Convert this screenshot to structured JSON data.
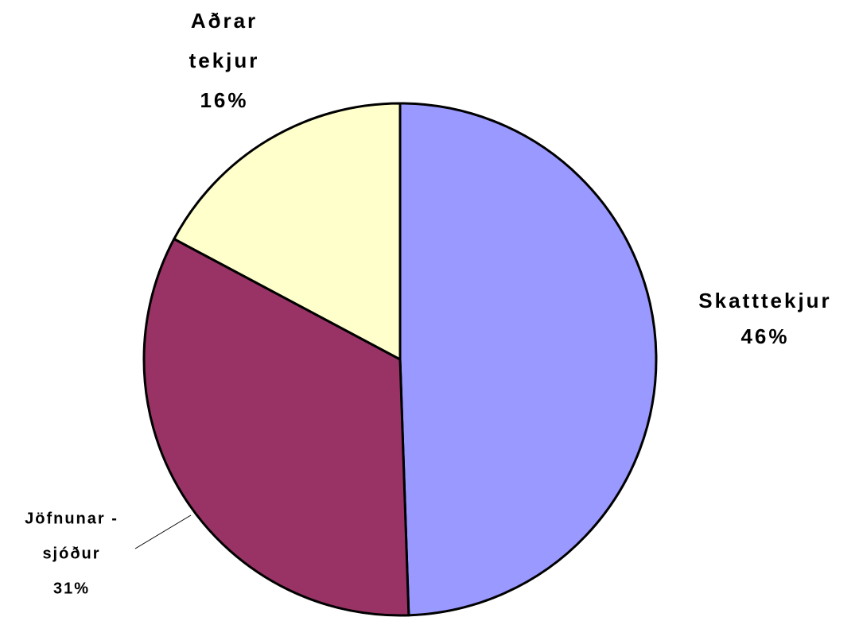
{
  "chart_data": {
    "type": "pie",
    "categories": [
      [
        "Skatttekjur"
      ],
      [
        "Jöfnunar -",
        "sjóður"
      ],
      [
        "Aðrar",
        "tekjur"
      ]
    ],
    "values": [
      46,
      31,
      16
    ],
    "value_labels": [
      "46%",
      "31%",
      "16%"
    ],
    "colors": [
      "#9999ff",
      "#993366",
      "#ffffcc"
    ]
  }
}
